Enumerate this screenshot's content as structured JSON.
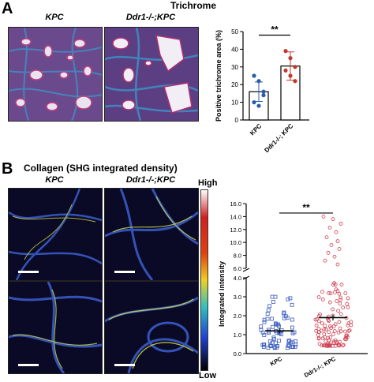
{
  "panel_a": {
    "letter": "A",
    "title": "Trichrome",
    "image_labels": [
      "KPC",
      "Ddr1-/-;KPC"
    ]
  },
  "panel_b": {
    "letter": "B",
    "title": "Collagen (SHG integrated density)",
    "image_labels": [
      "KPC",
      "Ddr1-/-;KPC"
    ],
    "colorbar": {
      "high": "High",
      "low": "Low"
    }
  },
  "colors": {
    "trichrome_bg": "#6a4a8c",
    "shg_bg": "#0a0a26",
    "chart_a_points": "#c0392b",
    "chart_a_blue": "#2a5caa",
    "chart_b_blue": "#3a5bbf",
    "chart_b_red": "#d04050"
  },
  "chart_data": [
    {
      "type": "bar",
      "ylabel": "Positive trichrome area (%)",
      "ylim": [
        0,
        50
      ],
      "yticks": [
        0,
        10,
        20,
        30,
        40,
        50
      ],
      "categories": [
        "KPC",
        "Ddr1-/-; KPC"
      ],
      "values": [
        16,
        30.5
      ],
      "errors": [
        5.5,
        8
      ],
      "points": [
        [
          25,
          22,
          14,
          10,
          8,
          16
        ],
        [
          39,
          35,
          30,
          28,
          25,
          22
        ]
      ],
      "significance": "**"
    },
    {
      "type": "scatter",
      "ylabel": "Integrated intensity",
      "yticks_lower": [
        0,
        1.0,
        2.0,
        3.0,
        4.0
      ],
      "yticks_upper": [
        6.0,
        8.0,
        10.0,
        12.0,
        14.0,
        16.0
      ],
      "categories": [
        "KPC",
        "Ddr1-/-; KPC"
      ],
      "means": [
        1.2,
        1.9
      ],
      "significance": "**"
    }
  ]
}
